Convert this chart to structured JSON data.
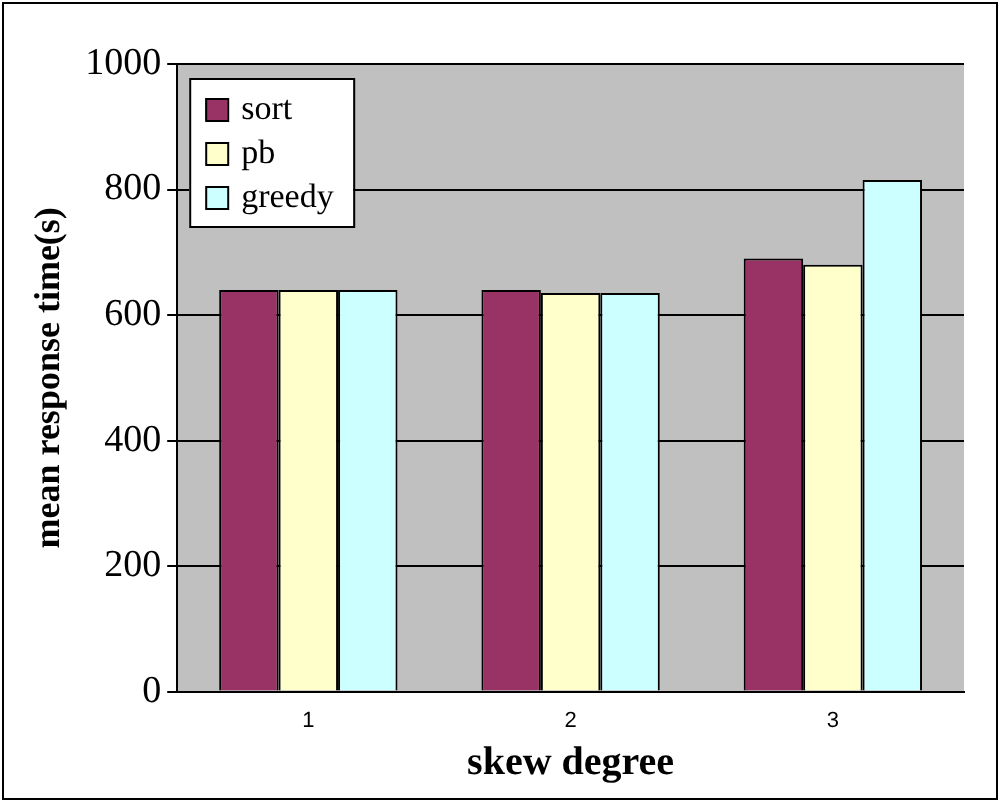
{
  "chart_data": {
    "type": "bar",
    "xlabel": "skew degree",
    "ylabel": "mean response time(s)",
    "categories": [
      "1",
      "2",
      "3"
    ],
    "series": [
      {
        "name": "sort",
        "color": "#993366",
        "values": [
          640,
          640,
          690
        ]
      },
      {
        "name": "pb",
        "color": "#ffffcc",
        "values": [
          640,
          635,
          680
        ]
      },
      {
        "name": "greedy",
        "color": "#ccffff",
        "values": [
          640,
          635,
          815
        ]
      }
    ],
    "ylim": [
      0,
      1000
    ],
    "yticks": [
      0,
      200,
      400,
      600,
      800,
      1000
    ],
    "grid": "y",
    "legend": "top left"
  }
}
